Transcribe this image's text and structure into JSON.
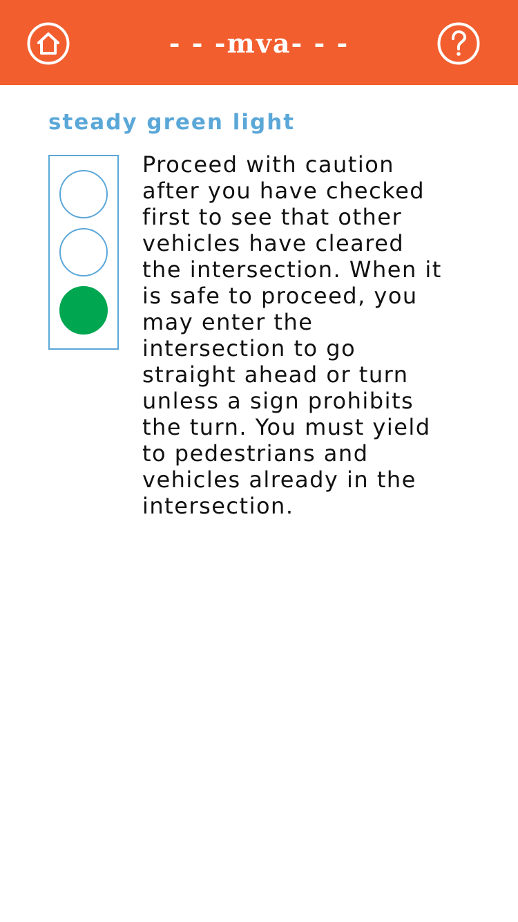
{
  "header": {
    "title": "- - -mva- - -",
    "home_icon": "home-icon",
    "help_icon": "help-icon",
    "background_color": "#f25e2e"
  },
  "content": {
    "section_title": "steady green light",
    "section_title_color": "#5aa7d8",
    "traffic_light": {
      "active_lamp": "bottom",
      "active_color": "#00a650",
      "outline_color": "#5aa7d8"
    },
    "description": "Proceed with caution after you have checked first to see that other vehicles have cleared the intersection. When it is safe to proceed, you may enter the intersection to go straight ahead or turn unless a sign prohibits the turn. You must yield to pedestrians and vehicles already in the intersection."
  }
}
